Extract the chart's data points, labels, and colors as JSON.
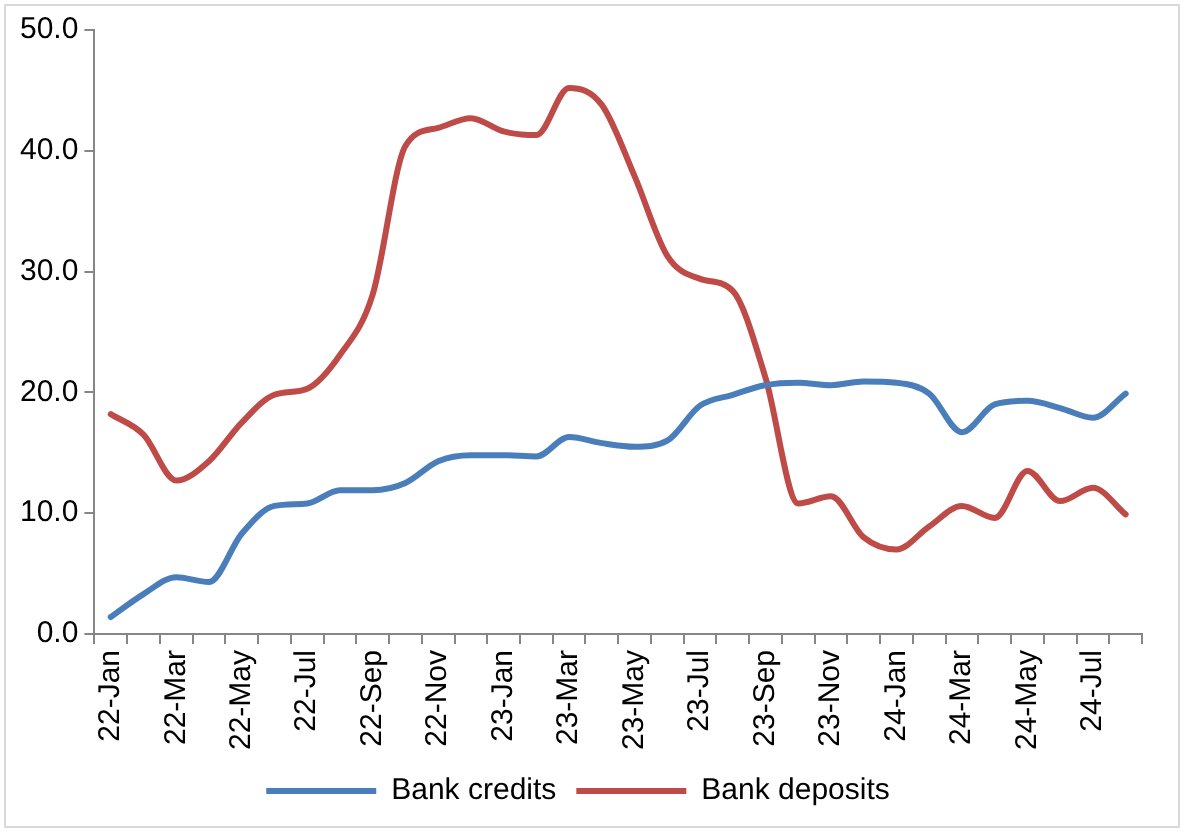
{
  "chart_data": {
    "type": "line",
    "categories": [
      "22-Jan",
      null,
      "22-Mar",
      null,
      "22-May",
      null,
      "22-Jul",
      null,
      "22-Sep",
      null,
      "22-Nov",
      null,
      "23-Jan",
      null,
      "23-Mar",
      null,
      "23-May",
      null,
      "23-Jul",
      null,
      "23-Sep",
      null,
      "23-Nov",
      null,
      "24-Jan",
      null,
      "24-Mar",
      null,
      "24-May",
      null,
      "24-Jul",
      null
    ],
    "series": [
      {
        "name": "Bank credits",
        "color": "#4a7ebb",
        "values": [
          1.4,
          3.3,
          4.7,
          4.3,
          8.3,
          10.6,
          10.8,
          11.9,
          11.9,
          12.5,
          14.3,
          14.8,
          14.8,
          14.7,
          16.3,
          15.8,
          15.5,
          16.0,
          18.9,
          19.8,
          20.6,
          20.8,
          20.6,
          20.9,
          20.8,
          19.9,
          16.7,
          19.0,
          19.3,
          18.7,
          17.9,
          19.9
        ]
      },
      {
        "name": "Bank deposits",
        "color": "#be4b48",
        "values": [
          18.2,
          16.5,
          12.7,
          14.3,
          17.5,
          19.8,
          20.3,
          23.1,
          28.1,
          40.4,
          41.9,
          42.7,
          41.6,
          41.3,
          45.2,
          43.8,
          37.9,
          31.3,
          29.4,
          28.4,
          21.2,
          10.8,
          11.4,
          8.0,
          7.0,
          8.9,
          10.6,
          9.6,
          13.5,
          11.0,
          12.1,
          9.9
        ]
      }
    ],
    "ylim": [
      0,
      50
    ],
    "yticks": [
      {
        "value": 0,
        "label": "0.0"
      },
      {
        "value": 10,
        "label": "10.0"
      },
      {
        "value": 20,
        "label": "20.0"
      },
      {
        "value": 30,
        "label": "30.0"
      },
      {
        "value": 40,
        "label": "40.0"
      },
      {
        "value": 50,
        "label": "50.0"
      }
    ],
    "grid": false,
    "legend": "bottom",
    "marker": "none",
    "line_style": "solid"
  }
}
